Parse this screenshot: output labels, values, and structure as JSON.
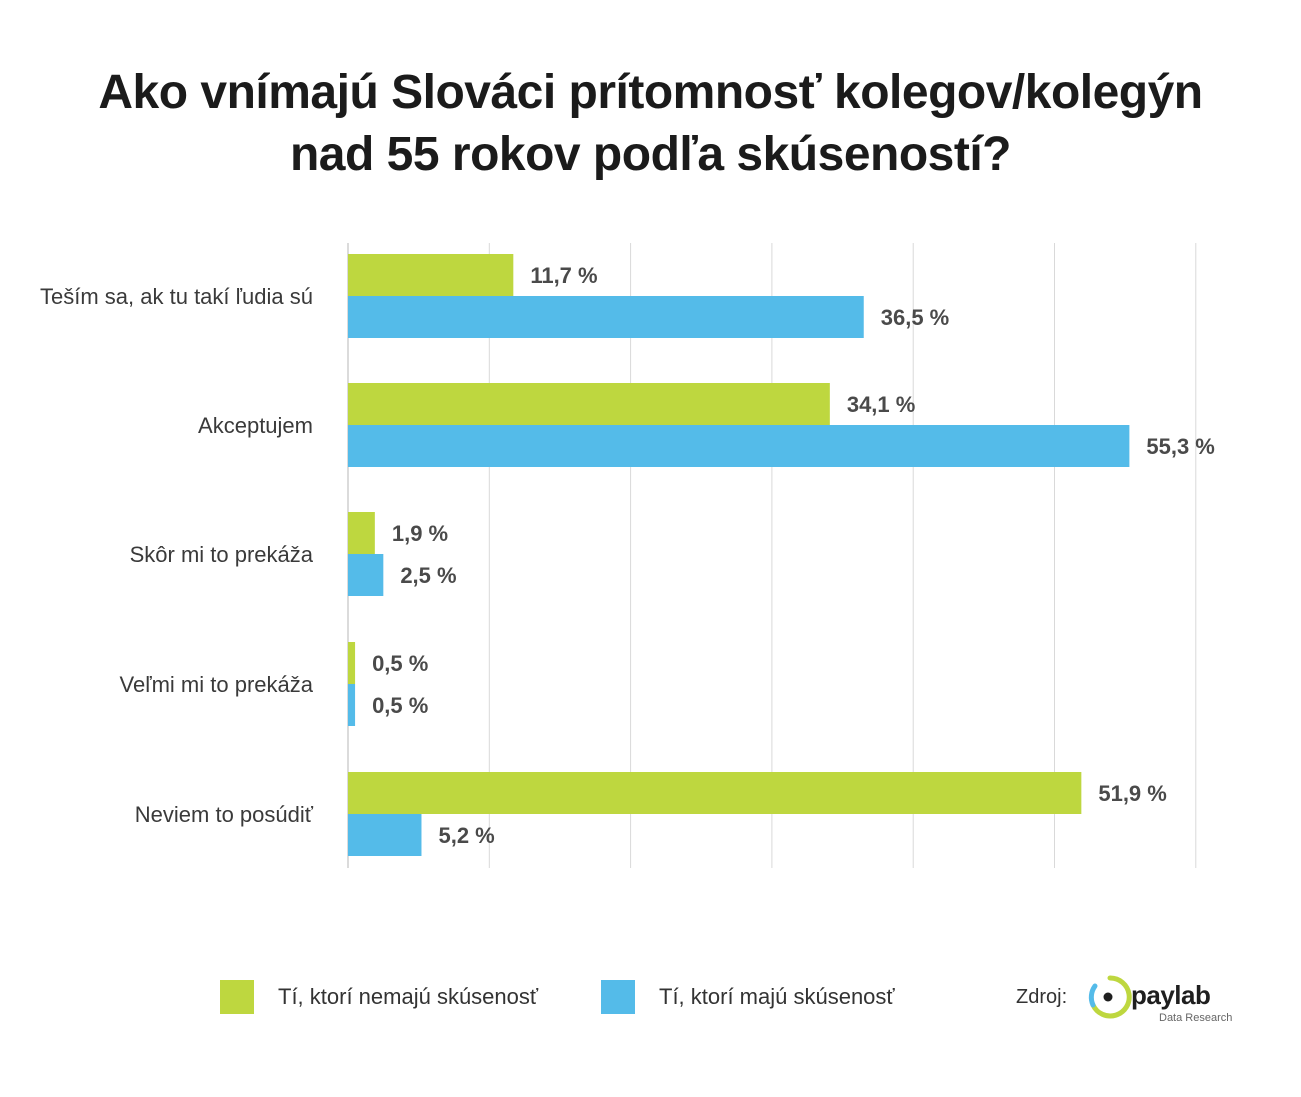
{
  "title": {
    "line1": "Ako vnímajú Slováci prítomnosť kolegov/kolegýn",
    "line2": "nad 55 rokov podľa skúseností?"
  },
  "colors": {
    "green": "#bed73f",
    "blue": "#54bbe9",
    "grid": "#d9d9d9",
    "axis": "#cfcfcf",
    "label": "#4a4a4a",
    "category": "#3a3a3a"
  },
  "chart_data": {
    "type": "bar",
    "orientation": "horizontal",
    "title": "Ako vnímajú Slováci prítomnosť kolegov/kolegýn nad 55 rokov podľa skúseností?",
    "categories": [
      "Teším sa, ak tu takí ľudia sú",
      "Akceptujem",
      "Skôr mi to prekáža",
      "Veľmi mi to prekáža",
      "Neviem to posúdiť"
    ],
    "series": [
      {
        "name": "Tí, ktorí nemajú skúsenosť",
        "color": "#bed73f",
        "values": [
          11.7,
          34.1,
          1.9,
          0.5,
          51.9
        ],
        "labels": [
          "11,7 %",
          "34,1 %",
          "1,9 %",
          "0,5 %",
          "51,9 %"
        ]
      },
      {
        "name": "Tí, ktorí majú skúsenosť",
        "color": "#54bbe9",
        "values": [
          36.5,
          55.3,
          2.5,
          0.5,
          5.2
        ],
        "labels": [
          "36,5 %",
          "55,3 %",
          "2,5 %",
          "0,5 %",
          "5,2 %"
        ]
      }
    ],
    "xlim": [
      0,
      60
    ],
    "grid": true,
    "legend_position": "bottom"
  },
  "legend": {
    "items": [
      {
        "label": "Tí, ktorí nemajú skúsenosť",
        "color": "#bed73f"
      },
      {
        "label": "Tí, ktorí majú skúsenosť",
        "color": "#54bbe9"
      }
    ]
  },
  "source": {
    "label": "Zdroj:",
    "brand": "paylab",
    "sub": "Data Research"
  }
}
